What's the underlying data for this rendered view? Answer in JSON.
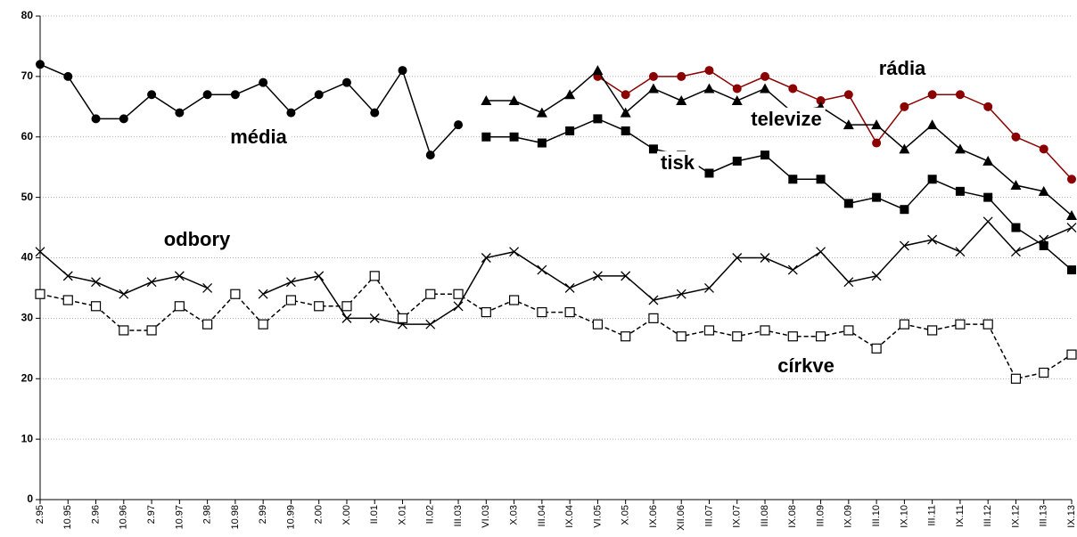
{
  "chart_data": {
    "type": "line",
    "categories": [
      "2.95",
      "10.95",
      "2.96",
      "10.96",
      "2.97",
      "10.97",
      "2.98",
      "10.98",
      "2.99",
      "10.99",
      "2.00",
      "X.00",
      "II.01",
      "X.01",
      "II.02",
      "III.03",
      "VI.03",
      "X.03",
      "III.04",
      "IX.04",
      "VI.05",
      "X.05",
      "IX.06",
      "XII.06",
      "III.07",
      "IX.07",
      "III.08",
      "IX.08",
      "III.09",
      "IX.09",
      "III.10",
      "IX.10",
      "III.11",
      "IX.11",
      "III.12",
      "IX.12",
      "III.13",
      "IX.13"
    ],
    "ylim": [
      0,
      80
    ],
    "yticks": [
      0,
      10,
      20,
      30,
      40,
      50,
      60,
      70,
      80
    ],
    "grid": true,
    "series": [
      {
        "name": "média",
        "color": "#000000",
        "marker": "circle",
        "line_style": "solid",
        "values": [
          72,
          70,
          63,
          63,
          67,
          64,
          67,
          67,
          69,
          64,
          67,
          69,
          64,
          71,
          57,
          62,
          null,
          null,
          null,
          null,
          null,
          null,
          null,
          null,
          null,
          null,
          null,
          null,
          null,
          null,
          null,
          null,
          null,
          null,
          null,
          null,
          null,
          null
        ]
      },
      {
        "name": "rádia",
        "color": "#8b0000",
        "marker": "circle",
        "line_style": "solid",
        "values": [
          null,
          null,
          null,
          null,
          null,
          null,
          null,
          null,
          null,
          null,
          null,
          null,
          null,
          null,
          null,
          null,
          null,
          null,
          null,
          null,
          70,
          67,
          70,
          70,
          71,
          68,
          70,
          68,
          66,
          67,
          59,
          65,
          67,
          67,
          65,
          60,
          58,
          53
        ]
      },
      {
        "name": "televize",
        "color": "#000000",
        "marker": "triangle",
        "line_style": "solid",
        "values": [
          null,
          null,
          null,
          null,
          null,
          null,
          null,
          null,
          null,
          null,
          null,
          null,
          null,
          null,
          null,
          null,
          66,
          66,
          64,
          67,
          71,
          64,
          68,
          66,
          68,
          66,
          68,
          64,
          65,
          62,
          62,
          58,
          62,
          58,
          56,
          52,
          51,
          47
        ]
      },
      {
        "name": "tisk",
        "color": "#000000",
        "marker": "square",
        "line_style": "solid",
        "values": [
          null,
          null,
          null,
          null,
          null,
          null,
          null,
          null,
          null,
          null,
          null,
          null,
          null,
          null,
          null,
          null,
          60,
          60,
          59,
          61,
          63,
          61,
          58,
          57,
          54,
          56,
          57,
          53,
          53,
          49,
          50,
          48,
          53,
          51,
          50,
          45,
          42,
          38
        ]
      },
      {
        "name": "odbory",
        "color": "#000000",
        "marker": "x",
        "line_style": "solid",
        "values": [
          41,
          37,
          36,
          34,
          36,
          37,
          35,
          null,
          34,
          36,
          37,
          30,
          30,
          29,
          29,
          32,
          40,
          41,
          38,
          35,
          37,
          37,
          33,
          34,
          35,
          40,
          40,
          38,
          41,
          36,
          37,
          42,
          43,
          41,
          46,
          41,
          43,
          45
        ]
      },
      {
        "name": "církve",
        "color": "#000000",
        "marker": "open-square",
        "line_style": "dashed",
        "values": [
          34,
          33,
          32,
          28,
          28,
          32,
          29,
          34,
          29,
          33,
          32,
          32,
          37,
          30,
          34,
          34,
          31,
          33,
          31,
          31,
          29,
          27,
          30,
          27,
          28,
          27,
          28,
          27,
          27,
          28,
          25,
          29,
          28,
          29,
          29,
          20,
          21,
          24
        ]
      }
    ]
  }
}
